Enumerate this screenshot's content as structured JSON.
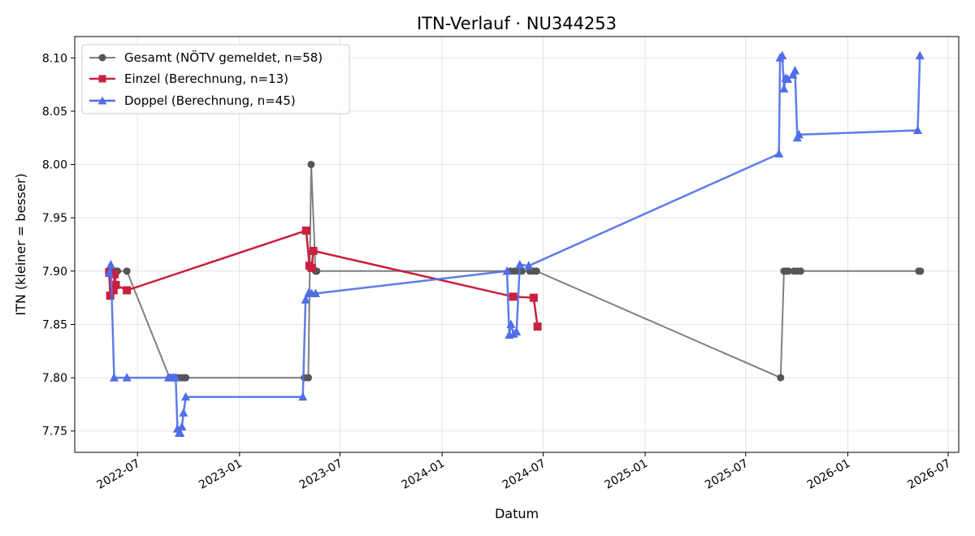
{
  "chart_data": {
    "type": "line",
    "title": "ITN-Verlauf · NU344253",
    "xlabel": "Datum",
    "ylabel": "ITN  (kleiner = besser)",
    "x_type": "date",
    "xlim": [
      "2022-03-10",
      "2026-07-20"
    ],
    "ylim": [
      7.73,
      8.12
    ],
    "x_ticks": [
      {
        "date": "2022-07-01",
        "label": "2022-07"
      },
      {
        "date": "2023-01-01",
        "label": "2023-01"
      },
      {
        "date": "2023-07-01",
        "label": "2023-07"
      },
      {
        "date": "2024-01-01",
        "label": "2024-01"
      },
      {
        "date": "2024-07-01",
        "label": "2024-07"
      },
      {
        "date": "2025-01-01",
        "label": "2025-01"
      },
      {
        "date": "2025-07-01",
        "label": "2025-07"
      },
      {
        "date": "2026-01-01",
        "label": "2026-01"
      },
      {
        "date": "2026-07-01",
        "label": "2026-07"
      }
    ],
    "y_ticks": [
      {
        "value": 7.75,
        "label": "7.75"
      },
      {
        "value": 7.8,
        "label": "7.80"
      },
      {
        "value": 7.85,
        "label": "7.85"
      },
      {
        "value": 7.9,
        "label": "7.90"
      },
      {
        "value": 7.95,
        "label": "7.95"
      },
      {
        "value": 8.0,
        "label": "8.00"
      },
      {
        "value": 8.05,
        "label": "8.05"
      },
      {
        "value": 8.1,
        "label": "8.10"
      }
    ],
    "grid": true,
    "legend_position": "top-left",
    "series": [
      {
        "name": "Gesamt (NÖTV gemeldet, n=58)",
        "color": "#555555",
        "marker": "circle",
        "x": [
          "2022-05-12",
          "2022-05-16",
          "2022-05-22",
          "2022-05-26",
          "2022-06-12",
          "2022-08-28",
          "2022-09-02",
          "2022-09-06",
          "2022-09-10",
          "2022-09-14",
          "2022-09-18",
          "2022-09-22",
          "2022-09-26",
          "2023-04-28",
          "2023-05-05",
          "2023-05-10",
          "2023-05-18",
          "2023-05-20",
          "2024-05-03",
          "2024-05-10",
          "2024-05-17",
          "2024-05-24",
          "2024-06-07",
          "2024-06-13",
          "2024-06-19",
          "2025-09-02",
          "2025-09-08",
          "2025-09-12",
          "2025-09-16",
          "2025-09-26",
          "2025-10-02",
          "2025-10-08",
          "2026-05-09",
          "2026-05-12"
        ],
        "y": [
          7.9,
          7.9,
          7.9,
          7.9,
          7.9,
          7.8,
          7.8,
          7.8,
          7.8,
          7.8,
          7.8,
          7.8,
          7.8,
          7.8,
          7.8,
          8.0,
          7.9,
          7.9,
          7.9,
          7.9,
          7.9,
          7.9,
          7.9,
          7.9,
          7.9,
          7.8,
          7.9,
          7.9,
          7.9,
          7.9,
          7.9,
          7.9,
          7.9,
          7.9
        ]
      },
      {
        "name": "Einzel (Berechnung, n=13)",
        "color": "#c8203e",
        "marker": "square",
        "x": [
          "2022-05-11",
          "2022-05-13",
          "2022-05-19",
          "2022-05-21",
          "2022-05-23",
          "2022-06-12",
          "2023-05-01",
          "2023-05-07",
          "2023-05-11",
          "2023-05-14",
          "2024-05-08",
          "2024-06-14",
          "2024-06-21"
        ],
        "y": [
          7.899,
          7.877,
          7.882,
          7.897,
          7.887,
          7.882,
          7.938,
          7.905,
          7.903,
          7.919,
          7.876,
          7.875,
          7.848
        ]
      },
      {
        "name": "Doppel (Berechnung, n=45)",
        "color": "#4f6ee8",
        "marker": "triangle",
        "x": [
          "2022-05-11",
          "2022-05-14",
          "2022-05-20",
          "2022-06-12",
          "2022-08-26",
          "2022-08-30",
          "2022-09-04",
          "2022-09-08",
          "2022-09-11",
          "2022-09-14",
          "2022-09-16",
          "2022-09-19",
          "2022-09-22",
          "2022-09-26",
          "2023-04-25",
          "2023-04-30",
          "2023-05-06",
          "2023-05-11",
          "2023-05-18",
          "2024-04-27",
          "2024-05-01",
          "2024-05-04",
          "2024-05-09",
          "2024-05-14",
          "2024-05-20",
          "2024-06-05",
          "2025-08-30",
          "2025-09-01",
          "2025-09-05",
          "2025-09-08",
          "2025-09-11",
          "2025-09-15",
          "2025-09-24",
          "2025-09-28",
          "2025-10-02",
          "2025-10-05",
          "2026-05-07",
          "2026-05-11"
        ],
        "y": [
          7.898,
          7.906,
          7.8,
          7.8,
          7.8,
          7.8,
          7.8,
          7.8,
          7.752,
          7.748,
          7.748,
          7.754,
          7.767,
          7.782,
          7.782,
          7.873,
          7.88,
          7.879,
          7.879,
          7.9,
          7.84,
          7.85,
          7.841,
          7.843,
          7.906,
          7.905,
          8.01,
          8.1,
          8.102,
          8.071,
          8.081,
          8.08,
          8.084,
          8.088,
          8.025,
          8.028,
          8.032,
          8.102
        ]
      }
    ]
  }
}
